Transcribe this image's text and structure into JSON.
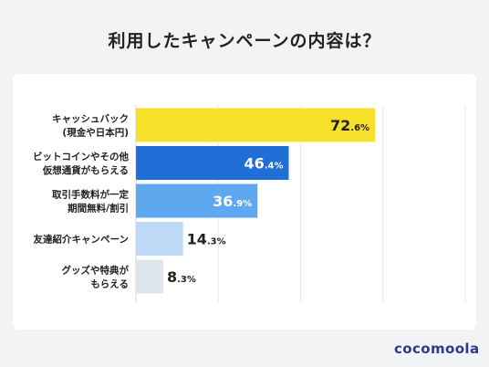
{
  "title": "利用したキャンペーンの内容は？",
  "brand": "cocomoola",
  "chart_data": {
    "type": "bar",
    "orientation": "horizontal",
    "categories": [
      [
        "キャッシュバック",
        "(現金や日本円)"
      ],
      [
        "ビットコインやその他",
        "仮想通貨がもらえる"
      ],
      [
        "取引手数料が一定",
        "期間無料/割引"
      ],
      [
        "友達紹介キャンペーン"
      ],
      [
        "グッズや特典が",
        "もらえる"
      ]
    ],
    "values": [
      72.6,
      46.4,
      36.9,
      14.3,
      8.3
    ],
    "value_labels": [
      [
        "72",
        ".6%"
      ],
      [
        "46",
        ".4%"
      ],
      [
        "36",
        ".9%"
      ],
      [
        "14",
        ".3%"
      ],
      [
        "8",
        ".3%"
      ]
    ],
    "bar_colors": [
      "#f6e02a",
      "#1f6fd6",
      "#5ea8ef",
      "#bcd9f6",
      "#dfe5ed"
    ],
    "label_colors": [
      "#222222",
      "#ffffff",
      "#ffffff",
      "#222222",
      "#222222"
    ],
    "xlim": [
      0,
      100
    ],
    "grid": true
  }
}
